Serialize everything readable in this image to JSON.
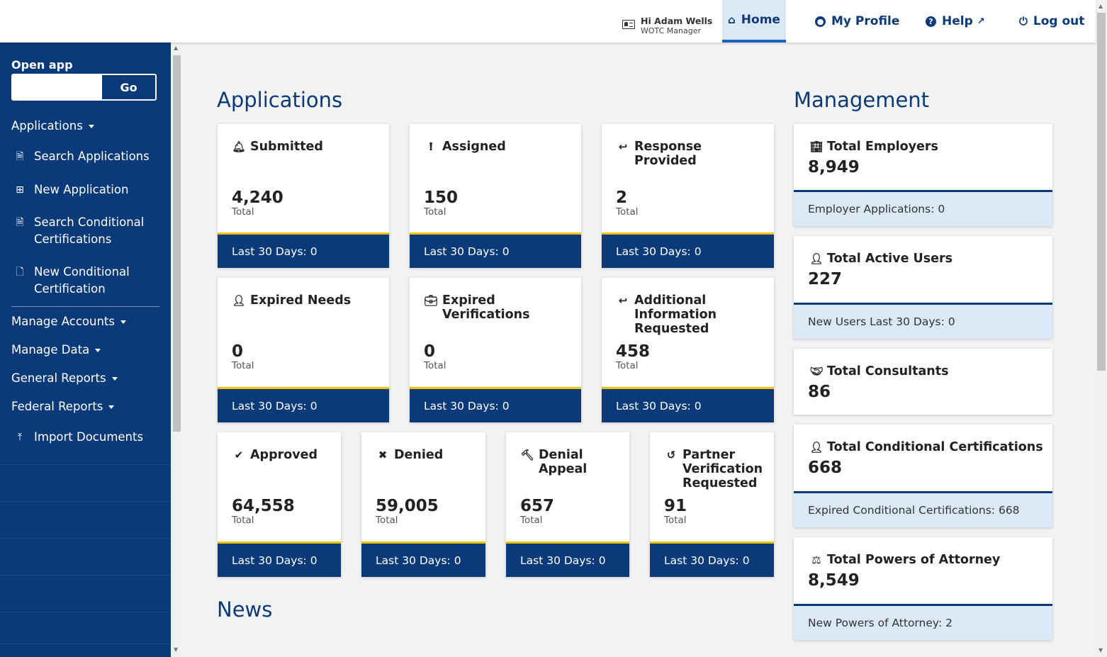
{
  "header": {
    "user_greeting": "Hi Adam Wells",
    "user_role": "WOTC Manager",
    "nav": {
      "home": "Home",
      "profile": "My Profile",
      "help": "Help",
      "logout": "Log out"
    }
  },
  "sidebar": {
    "open_app_label": "Open app",
    "open_app_value": "",
    "go_label": "Go",
    "items": [
      {
        "label": "Applications",
        "icon": "caret-down"
      },
      {
        "label": "Search Applications",
        "icon": "search-document-icon"
      },
      {
        "label": "New Application",
        "icon": "add-document-icon"
      },
      {
        "label": "Search Conditional Certifications",
        "icon": "search-document-icon"
      },
      {
        "label": "New Conditional Certification",
        "icon": "document-icon"
      },
      {
        "label": "Manage Accounts",
        "icon": "caret-down"
      },
      {
        "label": "Manage Data",
        "icon": "caret-down"
      },
      {
        "label": "General Reports",
        "icon": "caret-down"
      },
      {
        "label": "Federal Reports",
        "icon": "caret-down"
      },
      {
        "label": "Import Documents",
        "icon": "upload-icon"
      }
    ]
  },
  "applications": {
    "title": "Applications",
    "total_label": "Total",
    "cards": [
      {
        "name": "Submitted",
        "icon": "bell-icon",
        "total": "4,240",
        "last30": "Last 30 Days: 0"
      },
      {
        "name": "Assigned",
        "icon": "exclamation-icon",
        "total": "150",
        "last30": "Last 30 Days: 0"
      },
      {
        "name": "Response Provided",
        "icon": "reply-icon",
        "total": "2",
        "last30": "Last 30 Days: 0"
      },
      {
        "name": "Expired Needs",
        "icon": "user-clock-icon",
        "total": "0",
        "last30": "Last 30 Days: 0"
      },
      {
        "name": "Expired Verifications",
        "icon": "briefcase-clock-icon",
        "total": "0",
        "last30": "Last 30 Days: 0"
      },
      {
        "name": "Additional Information Requested",
        "icon": "reply-all-icon",
        "total": "458",
        "last30": "Last 30 Days: 0"
      },
      {
        "name": "Approved",
        "icon": "check-circle-icon",
        "total": "64,558",
        "last30": "Last 30 Days: 0"
      },
      {
        "name": "Denied",
        "icon": "x-circle-icon",
        "total": "59,005",
        "last30": "Last 30 Days: 0"
      },
      {
        "name": "Denial Appeal",
        "icon": "gavel-icon",
        "total": "657",
        "last30": "Last 30 Days: 0"
      },
      {
        "name": "Partner Verification Requested",
        "icon": "undo-icon",
        "total": "91",
        "last30": "Last 30 Days: 0"
      }
    ]
  },
  "news": {
    "title": "News"
  },
  "management": {
    "title": "Management",
    "cards": [
      {
        "name": "Total Employers",
        "icon": "building-icon",
        "value": "8,949",
        "sub": "Employer Applications: 0"
      },
      {
        "name": "Total Active Users",
        "icon": "user-icon",
        "value": "227",
        "sub": "New Users Last 30 Days: 0"
      },
      {
        "name": "Total Consultants",
        "icon": "handshake-icon",
        "value": "86",
        "sub": ""
      },
      {
        "name": "Total Conditional Certifications",
        "icon": "user-icon",
        "value": "668",
        "sub": "Expired Conditional Certifications: 668"
      },
      {
        "name": "Total Powers of Attorney",
        "icon": "scale-icon",
        "value": "8,549",
        "sub": "New Powers of Attorney: 2"
      }
    ]
  }
}
